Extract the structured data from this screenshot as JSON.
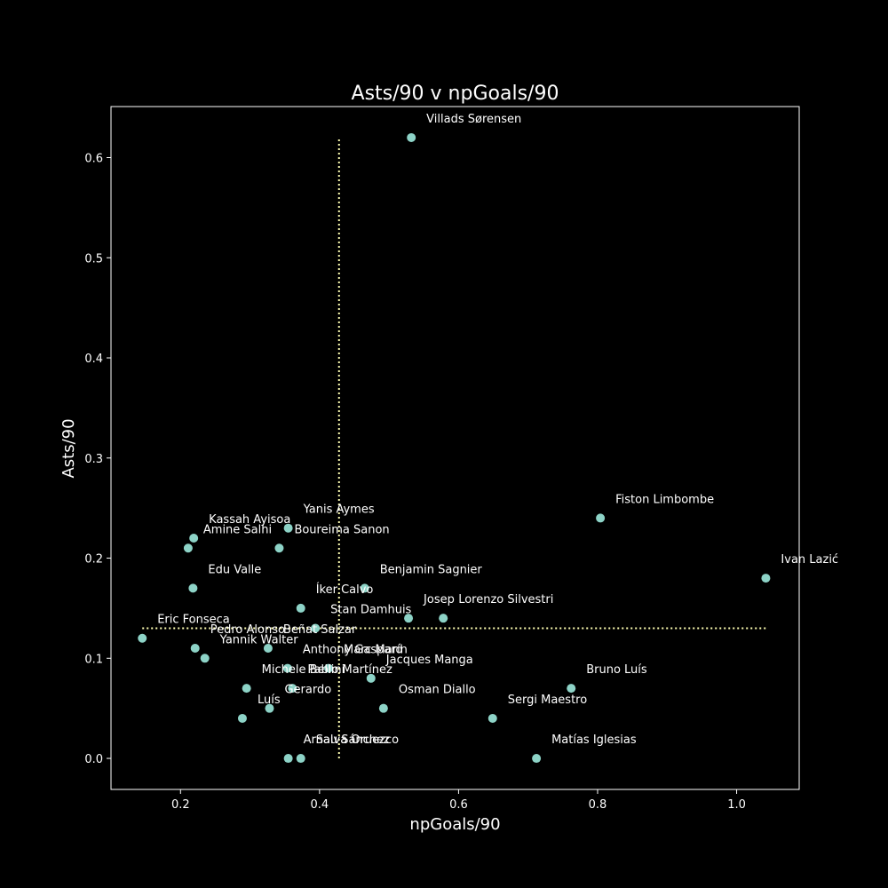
{
  "colors": {
    "background": "#000000",
    "foreground": "#ffffff",
    "marker": "#8dd3c7",
    "reference_line": "#ffffb3"
  },
  "chart_data": {
    "type": "scatter",
    "title": "Asts/90 v npGoals/90",
    "xlabel": "npGoals/90",
    "ylabel": "Asts/90",
    "xlim": [
      0.1,
      1.09
    ],
    "ylim": [
      -0.031,
      0.651
    ],
    "xticks": [
      "0.2",
      "0.4",
      "0.6",
      "0.8",
      "1.0"
    ],
    "yticks": [
      "0.0",
      "0.1",
      "0.2",
      "0.3",
      "0.4",
      "0.5",
      "0.6"
    ],
    "grid": false,
    "reference_lines": {
      "vertical_x": 0.428,
      "vertical_y_range": [
        0.0,
        0.62
      ],
      "horizontal_y": 0.13,
      "horizontal_x_range": [
        0.145,
        1.042
      ]
    },
    "points": [
      {
        "label": "Villads Sørensen",
        "x": 0.532,
        "y": 0.62
      },
      {
        "label": "Fiston Limbombe",
        "x": 0.804,
        "y": 0.24
      },
      {
        "label": "Ivan Lazić",
        "x": 1.042,
        "y": 0.18
      },
      {
        "label": "Yanis Aymes",
        "x": 0.355,
        "y": 0.23
      },
      {
        "label": "Kassah Ayisoa",
        "x": 0.219,
        "y": 0.22
      },
      {
        "label": "Amine Salhi",
        "x": 0.211,
        "y": 0.21
      },
      {
        "label": "Boureima Sanon",
        "x": 0.342,
        "y": 0.21
      },
      {
        "label": "Edu Valle",
        "x": 0.218,
        "y": 0.17
      },
      {
        "label": "Benjamin Sagnier",
        "x": 0.465,
        "y": 0.17
      },
      {
        "label": "Íker Calvo",
        "x": 0.373,
        "y": 0.15
      },
      {
        "label": "Josep",
        "x": 0.528,
        "y": 0.14
      },
      {
        "label": "Lorenzo Silvestri",
        "x": 0.578,
        "y": 0.14
      },
      {
        "label": "Stan Damhuis",
        "x": 0.394,
        "y": 0.13
      },
      {
        "label": "Eric Fonseca",
        "x": 0.145,
        "y": 0.12
      },
      {
        "label": "Pedro Alonso",
        "x": 0.221,
        "y": 0.11
      },
      {
        "label": "Beñat Salzar",
        "x": 0.326,
        "y": 0.11
      },
      {
        "label": "Yannik Walter",
        "x": 0.235,
        "y": 0.1
      },
      {
        "label": "Anthony Gaspard",
        "x": 0.354,
        "y": 0.09
      },
      {
        "label": "Marc Marín",
        "x": 0.413,
        "y": 0.09
      },
      {
        "label": "Jacques Manga",
        "x": 0.474,
        "y": 0.08
      },
      {
        "label": "Michele Bellini",
        "x": 0.295,
        "y": 0.07
      },
      {
        "label": "Pablo Martínez",
        "x": 0.361,
        "y": 0.07
      },
      {
        "label": "Bruno Luís",
        "x": 0.762,
        "y": 0.07
      },
      {
        "label": "Luís",
        "x": 0.289,
        "y": 0.04
      },
      {
        "label": "Gerardo",
        "x": 0.328,
        "y": 0.05
      },
      {
        "label": "Osman Diallo",
        "x": 0.492,
        "y": 0.05
      },
      {
        "label": "Sergi Maestro",
        "x": 0.649,
        "y": 0.04
      },
      {
        "label": "Arnau Sánchez",
        "x": 0.355,
        "y": 0.0
      },
      {
        "label": "Salva Oruezco",
        "x": 0.373,
        "y": 0.0
      },
      {
        "label": "Matías Iglesias",
        "x": 0.712,
        "y": 0.0
      }
    ]
  }
}
